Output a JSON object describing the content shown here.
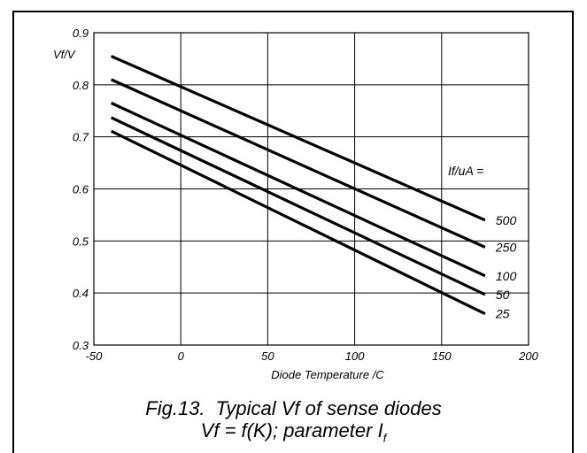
{
  "chart_data": {
    "type": "line",
    "title": "",
    "xlabel": "Diode Temperature /C",
    "ylabel": "Vf/V",
    "legend_title": "If/uA =",
    "xlim": [
      -50,
      200
    ],
    "ylim": [
      0.3,
      0.9
    ],
    "xticks": [
      "-50",
      "0",
      "50",
      "100",
      "150",
      "200"
    ],
    "yticks": [
      "0.3",
      "0.4",
      "0.5",
      "0.6",
      "0.7",
      "0.8",
      "0.9"
    ],
    "grid": true,
    "x": [
      -40,
      175
    ],
    "series": [
      {
        "name": "500",
        "values": [
          0.855,
          0.54
        ]
      },
      {
        "name": "250",
        "values": [
          0.81,
          0.488
        ]
      },
      {
        "name": "100",
        "values": [
          0.765,
          0.433
        ]
      },
      {
        "name": "50",
        "values": [
          0.737,
          0.397
        ]
      },
      {
        "name": "25",
        "values": [
          0.711,
          0.36
        ]
      }
    ]
  },
  "caption": {
    "line1_fig": "Fig.13.",
    "line1_text": "Typical Vf of sense diodes",
    "line2_text": "Vf = f(K); parameter I",
    "line2_sub": "f"
  }
}
